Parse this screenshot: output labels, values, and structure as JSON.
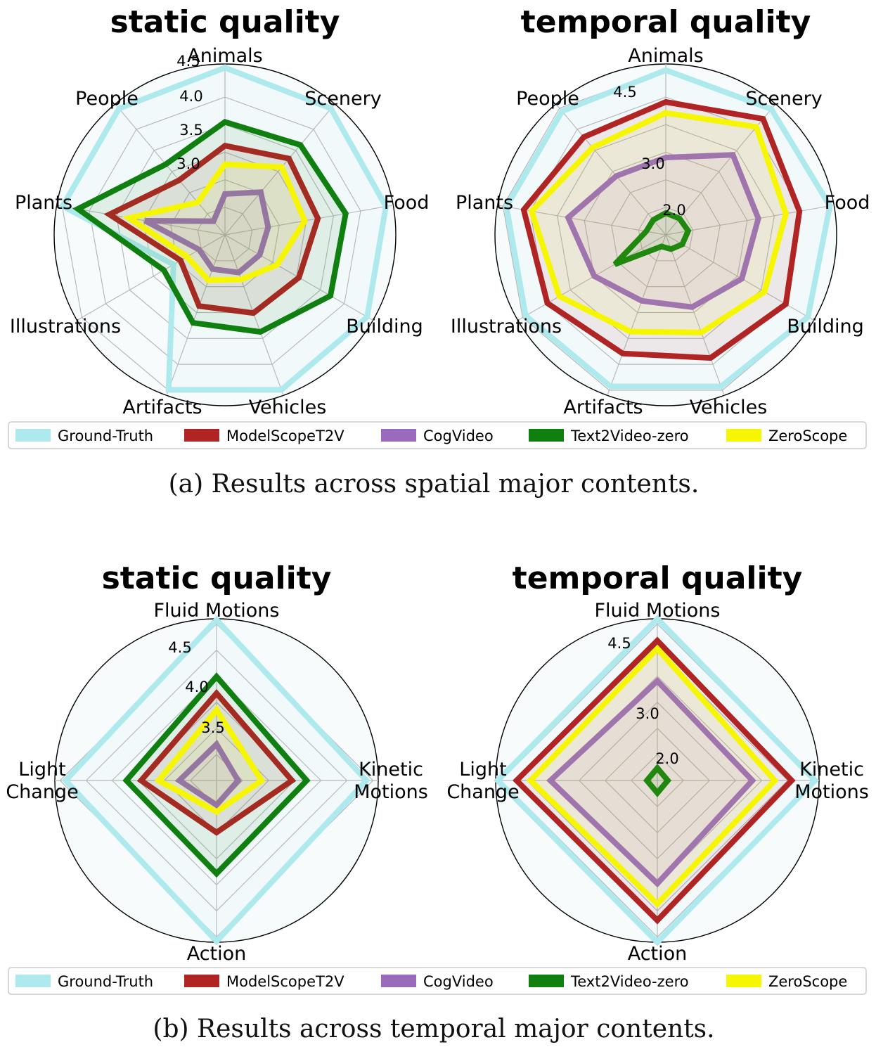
{
  "colors": {
    "Ground-Truth": "#aee9ee",
    "ModelScopeT2V": "#b02424",
    "CogVideo": "#9a6bbd",
    "Text2Video-zero": "#0f7f10",
    "ZeroScope": "#f6f600"
  },
  "captions": {
    "a": "(a)  Results across spatial major contents.",
    "b": "(b)  Results across temporal major contents."
  },
  "legend": [
    "Ground-Truth",
    "ModelScopeT2V",
    "CogVideo",
    "Text2Video-zero",
    "ZeroScope"
  ],
  "chart_data": [
    {
      "type": "radar",
      "title": "static quality",
      "categories": [
        "Animals",
        "Scenery",
        "Food",
        "Building",
        "Vehicles",
        "Artifacts",
        "Illustrations",
        "Plants",
        "People"
      ],
      "rlim": [
        2.5,
        4.8
      ],
      "rticks": [
        3.0,
        3.5,
        4.0,
        4.5
      ],
      "rtick_labels": [
        "3.0",
        "3.5",
        "4.0",
        "4.5"
      ],
      "series": [
        {
          "name": "Ground-Truth",
          "values": [
            4.75,
            4.72,
            4.7,
            4.71,
            4.72,
            4.72,
            3.3,
            4.72,
            4.72
          ]
        },
        {
          "name": "ModelScopeT2V",
          "values": [
            3.7,
            3.84,
            3.77,
            3.65,
            3.62,
            3.52,
            3.19,
            4.08,
            3.46
          ]
        },
        {
          "name": "CogVideo",
          "values": [
            3.05,
            3.25,
            3.09,
            3.04,
            3.04,
            2.99,
            2.9,
            3.59,
            2.74
          ]
        },
        {
          "name": "Text2Video-zero",
          "values": [
            4.02,
            4.08,
            4.15,
            4.14,
            3.89,
            3.76,
            3.45,
            4.51,
            3.74
          ]
        },
        {
          "name": "ZeroScope",
          "values": [
            3.45,
            3.69,
            3.59,
            3.31,
            3.14,
            3.15,
            3.09,
            3.81,
            3.07
          ]
        }
      ]
    },
    {
      "type": "radar",
      "title": "temporal quality",
      "categories": [
        "Animals",
        "Scenery",
        "Food",
        "Building",
        "Vehicles",
        "Artifacts",
        "Illustrations",
        "Plants",
        "People"
      ],
      "rlim": [
        1.4,
        5.0
      ],
      "rticks": [
        2.0,
        3.0,
        4.5
      ],
      "rtick_labels": [
        "2.0",
        "3.0",
        "4.5"
      ],
      "series": [
        {
          "name": "Ground-Truth",
          "values": [
            4.87,
            4.86,
            4.91,
            4.86,
            4.8,
            4.8,
            4.81,
            4.81,
            4.8
          ]
        },
        {
          "name": "ModelScopeT2V",
          "values": [
            4.2,
            4.59,
            4.26,
            4.32,
            4.16,
            4.06,
            4.28,
            4.44,
            4.09
          ]
        },
        {
          "name": "CogVideo",
          "values": [
            3.03,
            3.6,
            3.38,
            3.25,
            3.02,
            2.88,
            3.14,
            3.49,
            3.02
          ]
        },
        {
          "name": "Text2Video-zero",
          "values": [
            1.86,
            1.85,
            1.88,
            1.8,
            1.72,
            1.66,
            2.64,
            1.82,
            1.81
          ]
        },
        {
          "name": "ZeroScope",
          "values": [
            3.97,
            4.37,
            3.97,
            3.8,
            3.59,
            3.57,
            3.99,
            4.27,
            3.8
          ]
        }
      ]
    },
    {
      "type": "radar",
      "title": "static quality",
      "categories": [
        "Fluid Motions",
        "Kinetic\nMotions",
        "Action",
        "Light\nChange"
      ],
      "rlim": [
        3.2,
        4.85
      ],
      "rticks": [
        3.5,
        4.0,
        4.5
      ],
      "rtick_labels": [
        "3.5",
        "4.0",
        "4.5"
      ],
      "series": [
        {
          "name": "Ground-Truth",
          "values": [
            4.84,
            4.73,
            4.84,
            4.74
          ]
        },
        {
          "name": "ModelScopeT2V",
          "values": [
            4.09,
            3.97,
            3.73,
            3.97
          ]
        },
        {
          "name": "CogVideo",
          "values": [
            3.57,
            3.42,
            3.45,
            3.58
          ]
        },
        {
          "name": "Text2Video-zero",
          "values": [
            4.26,
            4.12,
            4.15,
            4.12
          ]
        },
        {
          "name": "ZeroScope",
          "values": [
            3.92,
            3.66,
            3.52,
            3.79
          ]
        }
      ]
    },
    {
      "type": "radar",
      "title": "temporal quality",
      "categories": [
        "Fluid Motions",
        "Kinetic\nMotions",
        "Action",
        "Light\nChange"
      ],
      "rlim": [
        1.7,
        4.95
      ],
      "rticks": [
        2.0,
        3.0,
        4.5
      ],
      "rtick_labels": [
        "2.0",
        "3.0",
        "4.5"
      ],
      "series": [
        {
          "name": "Ground-Truth",
          "values": [
            4.95,
            4.87,
            4.95,
            4.91
          ]
        },
        {
          "name": "ModelScopeT2V",
          "values": [
            4.51,
            4.4,
            4.51,
            4.53
          ]
        },
        {
          "name": "CogVideo",
          "values": [
            3.7,
            3.61,
            3.77,
            3.85
          ]
        },
        {
          "name": "Text2Video-zero",
          "values": [
            1.95,
            1.91,
            1.95,
            1.91
          ]
        },
        {
          "name": "ZeroScope",
          "values": [
            4.35,
            4.06,
            4.18,
            4.25
          ]
        }
      ]
    }
  ]
}
